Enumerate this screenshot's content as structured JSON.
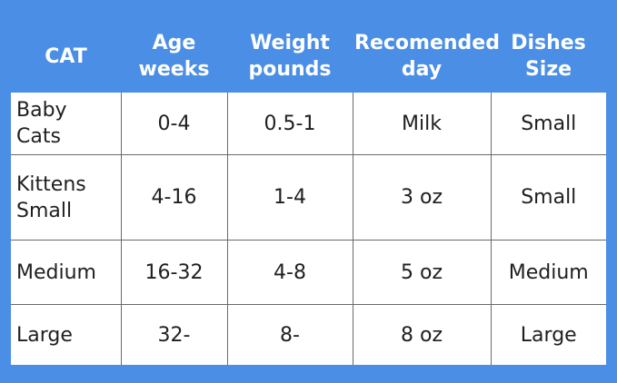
{
  "table": {
    "headers": [
      [
        "CAT"
      ],
      [
        "Age",
        "weeks"
      ],
      [
        "Weight",
        "pounds"
      ],
      [
        "Recomended",
        "day"
      ],
      [
        "Dishes",
        "Size"
      ]
    ],
    "rows": [
      {
        "cat": [
          "Baby Cats"
        ],
        "age": "0-4",
        "weight": "0.5-1",
        "day": "Milk",
        "dish": "Small"
      },
      {
        "cat": [
          "Kittens",
          "Small"
        ],
        "age": "4-16",
        "weight": "1-4",
        "day": "3 oz",
        "dish": "Small"
      },
      {
        "cat": [
          "Medium"
        ],
        "age": "16-32",
        "weight": "4-8",
        "day": "5 oz",
        "dish": "Medium"
      },
      {
        "cat": [
          "Large"
        ],
        "age": "32-",
        "weight": "8-",
        "day": "8 oz",
        "dish": "Large"
      }
    ]
  },
  "colors": {
    "header_background": "#4a8ee6",
    "header_text": "#ffffff",
    "cell_background": "#ffffff",
    "grid_line": "#6a6a6a"
  }
}
